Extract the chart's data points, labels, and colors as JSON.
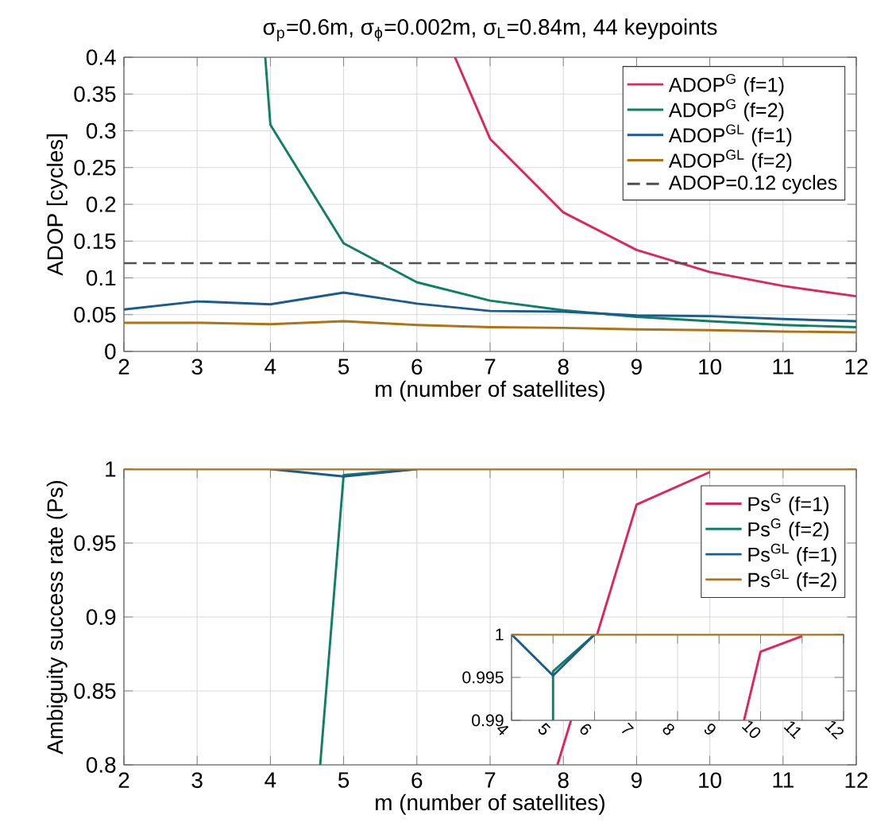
{
  "chart_data": [
    {
      "type": "line",
      "title": "σ$_{p}$=0.6m, σ$_{ϕ}$=0.002m, σ$_{L}$=0.84m, 44 keypoints",
      "xlabel": "m (number of satellites)",
      "ylabel": "ADOP [cycles]",
      "xlim": [
        2,
        12
      ],
      "ylim": [
        0,
        0.4
      ],
      "xticks": [
        2,
        3,
        4,
        5,
        6,
        7,
        8,
        9,
        10,
        11,
        12
      ],
      "yticks": [
        0,
        0.05,
        0.1,
        0.15,
        0.2,
        0.25,
        0.3,
        0.35,
        0.4
      ],
      "grid": true,
      "legend": "top right",
      "series": [
        {
          "name": "ADOP$^{G}$ (f=1)",
          "color": "#e0245c",
          "x": [
            6.52,
            7,
            8,
            9,
            10,
            11,
            12
          ],
          "values": [
            0.4,
            0.289,
            0.189,
            0.138,
            0.108,
            0.089,
            0.075
          ]
        },
        {
          "name": "ADOP$^{G}$ (f=2)",
          "color": "#0f8066",
          "x": [
            3.93,
            4,
            5,
            6,
            7,
            8,
            9,
            10,
            11,
            12
          ],
          "values": [
            0.4,
            0.308,
            0.147,
            0.094,
            0.069,
            0.056,
            0.047,
            0.041,
            0.036,
            0.033
          ]
        },
        {
          "name": "ADOP$^{GL}$ (f=1)",
          "color": "#1a5b90",
          "x": [
            2,
            3,
            4,
            5,
            6,
            7,
            8,
            9,
            10,
            11,
            12
          ],
          "values": [
            0.057,
            0.068,
            0.064,
            0.08,
            0.065,
            0.055,
            0.054,
            0.049,
            0.048,
            0.044,
            0.041
          ]
        },
        {
          "name": "ADOP$^{GL}$ (f=2)",
          "color": "#b07215",
          "x": [
            2,
            3,
            4,
            5,
            6,
            7,
            8,
            9,
            10,
            11,
            12
          ],
          "values": [
            0.039,
            0.039,
            0.037,
            0.041,
            0.036,
            0.033,
            0.032,
            0.03,
            0.029,
            0.027,
            0.026
          ]
        }
      ],
      "ref_lines": [
        {
          "axis": "y",
          "value": 0.12,
          "label": "ADOP=0.12 cycles",
          "color": "#505050",
          "line_style": "dashed"
        }
      ]
    },
    {
      "type": "line",
      "xlabel": "m (number of satellites)",
      "ylabel": "Ambiguity success rate (Ps)",
      "xlim": [
        2,
        12
      ],
      "ylim": [
        0.8,
        1
      ],
      "xticks": [
        2,
        3,
        4,
        5,
        6,
        7,
        8,
        9,
        10,
        11,
        12
      ],
      "yticks": [
        0.8,
        0.85,
        0.9,
        0.95,
        1
      ],
      "grid": true,
      "legend": "top right",
      "series": [
        {
          "name": "Ps$^{G}$ (f=1)",
          "color": "#e0245c",
          "x": [
            7.92,
            9,
            10
          ],
          "values": [
            0.8,
            0.976,
            0.998
          ]
        },
        {
          "name": "Ps$^{G}$ (f=2)",
          "color": "#0f8066",
          "x": [
            4.68,
            5,
            6
          ],
          "values": [
            0.8,
            0.996,
            1
          ]
        },
        {
          "name": "Ps$^{GL}$ (f=1)",
          "color": "#1a5b90",
          "x": [
            4,
            5,
            6
          ],
          "values": [
            1,
            0.995,
            1
          ]
        },
        {
          "name": "Ps$^{GL}$ (f=2)",
          "color": "#b07215",
          "x": [
            2,
            3,
            4,
            5,
            6,
            7,
            8,
            9,
            10,
            11,
            12
          ],
          "values": [
            1,
            1,
            1,
            1,
            1,
            1,
            1,
            1,
            1,
            1,
            1
          ]
        }
      ]
    },
    {
      "type": "line",
      "xlim": [
        4,
        12
      ],
      "ylim": [
        0.99,
        1
      ],
      "xticks": [
        4,
        5,
        6,
        7,
        8,
        9,
        10,
        11,
        12
      ],
      "yticks": [
        0.99,
        0.995,
        1
      ],
      "grid": true,
      "series": [
        {
          "color": "#e0245c",
          "x": [
            9.6,
            10,
            11
          ],
          "values": [
            0.99,
            0.998,
            0.9998
          ]
        },
        {
          "color": "#0f8066",
          "x": [
            5,
            5,
            6
          ],
          "values": [
            0.99,
            0.9957,
            1
          ]
        },
        {
          "color": "#1a5b90",
          "x": [
            4,
            5,
            6
          ],
          "values": [
            1,
            0.9952,
            1
          ]
        },
        {
          "color": "#b07215",
          "x": [
            4,
            5,
            6,
            7,
            8,
            9,
            10,
            11,
            12
          ],
          "values": [
            1,
            1,
            1,
            1,
            1,
            1,
            1,
            1,
            1
          ]
        }
      ]
    }
  ]
}
